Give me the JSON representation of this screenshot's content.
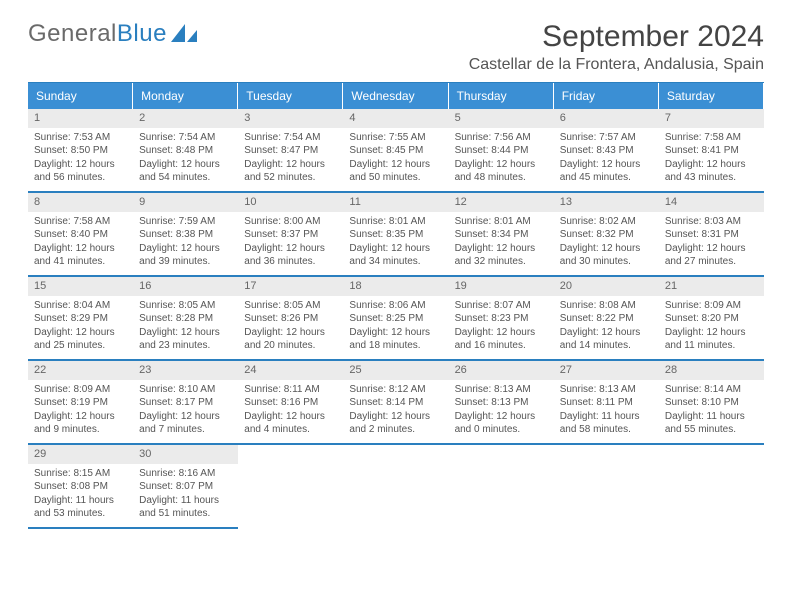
{
  "brand": {
    "part1": "General",
    "part2": "Blue"
  },
  "title": "September 2024",
  "location": "Castellar de la Frontera, Andalusia, Spain",
  "colors": {
    "header_bg": "#3b8fd4",
    "border": "#2a7fbf",
    "daynum_bg": "#ebebeb",
    "text": "#555555"
  },
  "day_headers": [
    "Sunday",
    "Monday",
    "Tuesday",
    "Wednesday",
    "Thursday",
    "Friday",
    "Saturday"
  ],
  "days": [
    {
      "n": "1",
      "sr": "Sunrise: 7:53 AM",
      "ss": "Sunset: 8:50 PM",
      "d1": "Daylight: 12 hours",
      "d2": "and 56 minutes."
    },
    {
      "n": "2",
      "sr": "Sunrise: 7:54 AM",
      "ss": "Sunset: 8:48 PM",
      "d1": "Daylight: 12 hours",
      "d2": "and 54 minutes."
    },
    {
      "n": "3",
      "sr": "Sunrise: 7:54 AM",
      "ss": "Sunset: 8:47 PM",
      "d1": "Daylight: 12 hours",
      "d2": "and 52 minutes."
    },
    {
      "n": "4",
      "sr": "Sunrise: 7:55 AM",
      "ss": "Sunset: 8:45 PM",
      "d1": "Daylight: 12 hours",
      "d2": "and 50 minutes."
    },
    {
      "n": "5",
      "sr": "Sunrise: 7:56 AM",
      "ss": "Sunset: 8:44 PM",
      "d1": "Daylight: 12 hours",
      "d2": "and 48 minutes."
    },
    {
      "n": "6",
      "sr": "Sunrise: 7:57 AM",
      "ss": "Sunset: 8:43 PM",
      "d1": "Daylight: 12 hours",
      "d2": "and 45 minutes."
    },
    {
      "n": "7",
      "sr": "Sunrise: 7:58 AM",
      "ss": "Sunset: 8:41 PM",
      "d1": "Daylight: 12 hours",
      "d2": "and 43 minutes."
    },
    {
      "n": "8",
      "sr": "Sunrise: 7:58 AM",
      "ss": "Sunset: 8:40 PM",
      "d1": "Daylight: 12 hours",
      "d2": "and 41 minutes."
    },
    {
      "n": "9",
      "sr": "Sunrise: 7:59 AM",
      "ss": "Sunset: 8:38 PM",
      "d1": "Daylight: 12 hours",
      "d2": "and 39 minutes."
    },
    {
      "n": "10",
      "sr": "Sunrise: 8:00 AM",
      "ss": "Sunset: 8:37 PM",
      "d1": "Daylight: 12 hours",
      "d2": "and 36 minutes."
    },
    {
      "n": "11",
      "sr": "Sunrise: 8:01 AM",
      "ss": "Sunset: 8:35 PM",
      "d1": "Daylight: 12 hours",
      "d2": "and 34 minutes."
    },
    {
      "n": "12",
      "sr": "Sunrise: 8:01 AM",
      "ss": "Sunset: 8:34 PM",
      "d1": "Daylight: 12 hours",
      "d2": "and 32 minutes."
    },
    {
      "n": "13",
      "sr": "Sunrise: 8:02 AM",
      "ss": "Sunset: 8:32 PM",
      "d1": "Daylight: 12 hours",
      "d2": "and 30 minutes."
    },
    {
      "n": "14",
      "sr": "Sunrise: 8:03 AM",
      "ss": "Sunset: 8:31 PM",
      "d1": "Daylight: 12 hours",
      "d2": "and 27 minutes."
    },
    {
      "n": "15",
      "sr": "Sunrise: 8:04 AM",
      "ss": "Sunset: 8:29 PM",
      "d1": "Daylight: 12 hours",
      "d2": "and 25 minutes."
    },
    {
      "n": "16",
      "sr": "Sunrise: 8:05 AM",
      "ss": "Sunset: 8:28 PM",
      "d1": "Daylight: 12 hours",
      "d2": "and 23 minutes."
    },
    {
      "n": "17",
      "sr": "Sunrise: 8:05 AM",
      "ss": "Sunset: 8:26 PM",
      "d1": "Daylight: 12 hours",
      "d2": "and 20 minutes."
    },
    {
      "n": "18",
      "sr": "Sunrise: 8:06 AM",
      "ss": "Sunset: 8:25 PM",
      "d1": "Daylight: 12 hours",
      "d2": "and 18 minutes."
    },
    {
      "n": "19",
      "sr": "Sunrise: 8:07 AM",
      "ss": "Sunset: 8:23 PM",
      "d1": "Daylight: 12 hours",
      "d2": "and 16 minutes."
    },
    {
      "n": "20",
      "sr": "Sunrise: 8:08 AM",
      "ss": "Sunset: 8:22 PM",
      "d1": "Daylight: 12 hours",
      "d2": "and 14 minutes."
    },
    {
      "n": "21",
      "sr": "Sunrise: 8:09 AM",
      "ss": "Sunset: 8:20 PM",
      "d1": "Daylight: 12 hours",
      "d2": "and 11 minutes."
    },
    {
      "n": "22",
      "sr": "Sunrise: 8:09 AM",
      "ss": "Sunset: 8:19 PM",
      "d1": "Daylight: 12 hours",
      "d2": "and 9 minutes."
    },
    {
      "n": "23",
      "sr": "Sunrise: 8:10 AM",
      "ss": "Sunset: 8:17 PM",
      "d1": "Daylight: 12 hours",
      "d2": "and 7 minutes."
    },
    {
      "n": "24",
      "sr": "Sunrise: 8:11 AM",
      "ss": "Sunset: 8:16 PM",
      "d1": "Daylight: 12 hours",
      "d2": "and 4 minutes."
    },
    {
      "n": "25",
      "sr": "Sunrise: 8:12 AM",
      "ss": "Sunset: 8:14 PM",
      "d1": "Daylight: 12 hours",
      "d2": "and 2 minutes."
    },
    {
      "n": "26",
      "sr": "Sunrise: 8:13 AM",
      "ss": "Sunset: 8:13 PM",
      "d1": "Daylight: 12 hours",
      "d2": "and 0 minutes."
    },
    {
      "n": "27",
      "sr": "Sunrise: 8:13 AM",
      "ss": "Sunset: 8:11 PM",
      "d1": "Daylight: 11 hours",
      "d2": "and 58 minutes."
    },
    {
      "n": "28",
      "sr": "Sunrise: 8:14 AM",
      "ss": "Sunset: 8:10 PM",
      "d1": "Daylight: 11 hours",
      "d2": "and 55 minutes."
    },
    {
      "n": "29",
      "sr": "Sunrise: 8:15 AM",
      "ss": "Sunset: 8:08 PM",
      "d1": "Daylight: 11 hours",
      "d2": "and 53 minutes."
    },
    {
      "n": "30",
      "sr": "Sunrise: 8:16 AM",
      "ss": "Sunset: 8:07 PM",
      "d1": "Daylight: 11 hours",
      "d2": "and 51 minutes."
    }
  ],
  "trailing_empty": 5
}
